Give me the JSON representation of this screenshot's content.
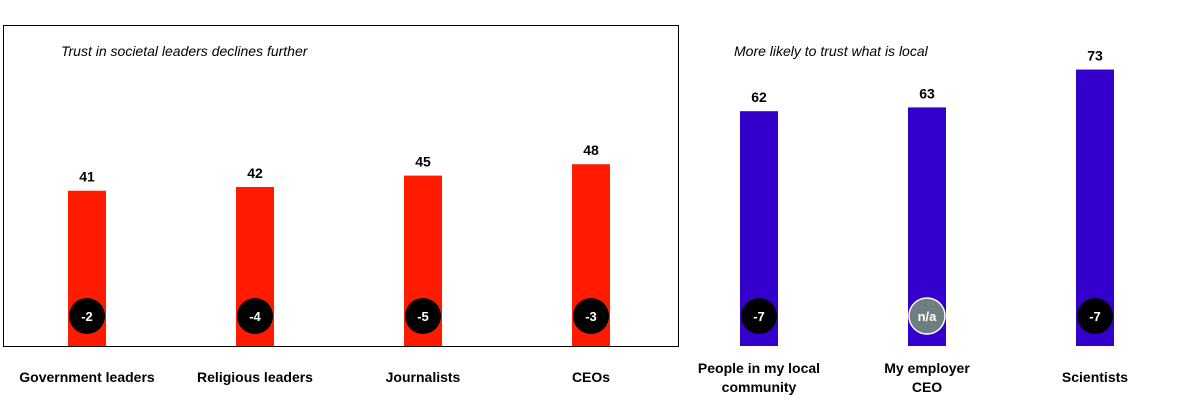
{
  "chart_data": [
    {
      "type": "bar",
      "title": "Trust in societal leaders declines further",
      "categories": [
        "Government leaders",
        "Religious leaders",
        "Journalists",
        "CEOs"
      ],
      "values": [
        41,
        42,
        45,
        48
      ],
      "changes": [
        "-2",
        "-4",
        "-5",
        "-3"
      ],
      "color": "#ff1a00",
      "ylim": [
        0,
        100
      ],
      "legend": "none",
      "grid": false,
      "framed": true
    },
    {
      "type": "bar",
      "title": "More likely to trust what  is local",
      "categories": [
        "People in my local community",
        "My employer CEO",
        "Scientists"
      ],
      "values": [
        62,
        63,
        73
      ],
      "changes": [
        "-7",
        "n/a",
        "-7"
      ],
      "color": "#3300cc",
      "ylim": [
        0,
        100
      ],
      "legend": "none",
      "grid": false,
      "framed": false
    }
  ],
  "colors": {
    "badge_default": "#000000",
    "badge_na": "#6f7f7f"
  }
}
